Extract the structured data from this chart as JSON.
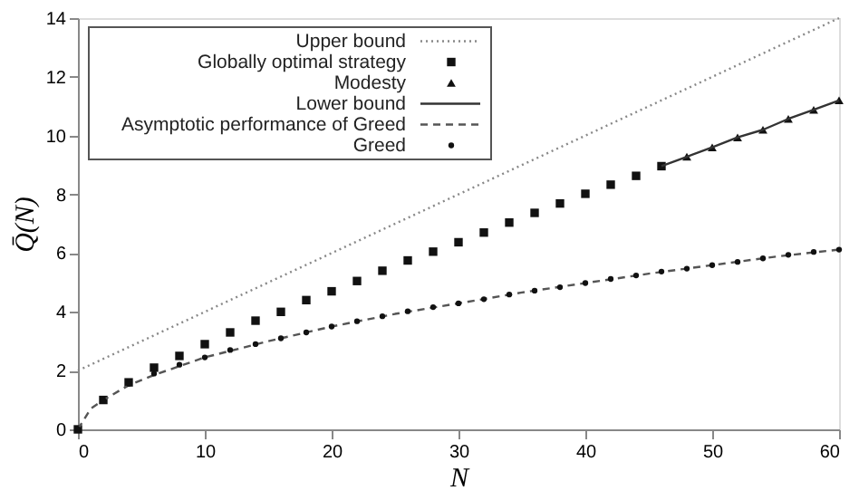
{
  "chart_data": {
    "type": "line",
    "xlabel": "N",
    "ylabel": "Q̄(N)",
    "xlim": [
      0,
      60
    ],
    "ylim": [
      0,
      14
    ],
    "xticks": [
      0,
      10,
      20,
      30,
      40,
      50,
      60
    ],
    "yticks": [
      0,
      2,
      4,
      6,
      8,
      10,
      12,
      14
    ],
    "grid": false,
    "legend": "top left",
    "series": [
      {
        "name": "Upper bound",
        "color": "#888888",
        "line_style": "dotted",
        "x": [
          0,
          60
        ],
        "values": [
          2.0,
          14.0
        ]
      },
      {
        "name": "Globally optimal strategy",
        "type": "scatter",
        "color": "#111111",
        "marker": "square",
        "x": [
          0,
          2,
          4,
          6,
          8,
          10,
          12,
          14,
          16,
          18,
          20,
          22,
          24,
          26,
          28,
          30,
          32,
          34,
          36,
          38,
          40,
          42,
          44,
          46
        ],
        "values": [
          0,
          1.0,
          1.6,
          2.1,
          2.5,
          2.9,
          3.3,
          3.7,
          4.0,
          4.4,
          4.7,
          5.05,
          5.4,
          5.75,
          6.05,
          6.37,
          6.7,
          7.04,
          7.37,
          7.69,
          8.02,
          8.33,
          8.63,
          8.96
        ]
      },
      {
        "name": "Modesty",
        "type": "scatter",
        "color": "#111111",
        "marker": "triangle",
        "x": [
          48,
          50,
          52,
          54,
          56,
          58,
          60
        ],
        "values": [
          9.28,
          9.6,
          9.94,
          10.2,
          10.57,
          10.88,
          11.2
        ]
      },
      {
        "name": "Lower bound",
        "color": "#333333",
        "line_style": "solid",
        "x": [
          46,
          48,
          50,
          52,
          54,
          56,
          58,
          60
        ],
        "values": [
          8.96,
          9.28,
          9.6,
          9.94,
          10.2,
          10.57,
          10.88,
          11.2
        ]
      },
      {
        "name": "Asymptotic performance of Greed",
        "color": "#555555",
        "line_style": "dashed",
        "x": [
          0,
          1,
          2,
          4,
          6,
          8,
          10,
          15,
          20,
          25,
          30,
          35,
          40,
          45,
          50,
          55,
          60
        ],
        "values": [
          0,
          0.7,
          1.0,
          1.5,
          1.85,
          2.15,
          2.45,
          3.0,
          3.5,
          3.93,
          4.29,
          4.66,
          4.98,
          5.3,
          5.59,
          5.88,
          6.12
        ]
      },
      {
        "name": "Greed",
        "type": "scatter",
        "color": "#111111",
        "marker": "circle",
        "x": [
          0,
          2,
          4,
          6,
          8,
          10,
          12,
          14,
          16,
          18,
          20,
          22,
          24,
          26,
          28,
          30,
          32,
          34,
          36,
          38,
          40,
          42,
          44,
          46,
          48,
          50,
          52,
          54,
          56,
          58,
          60
        ],
        "values": [
          0,
          1.0,
          1.55,
          1.9,
          2.2,
          2.45,
          2.7,
          2.9,
          3.1,
          3.3,
          3.5,
          3.68,
          3.85,
          4.02,
          4.16,
          4.29,
          4.43,
          4.59,
          4.72,
          4.84,
          4.98,
          5.12,
          5.24,
          5.37,
          5.47,
          5.59,
          5.7,
          5.82,
          5.94,
          6.04,
          6.12
        ]
      }
    ]
  }
}
